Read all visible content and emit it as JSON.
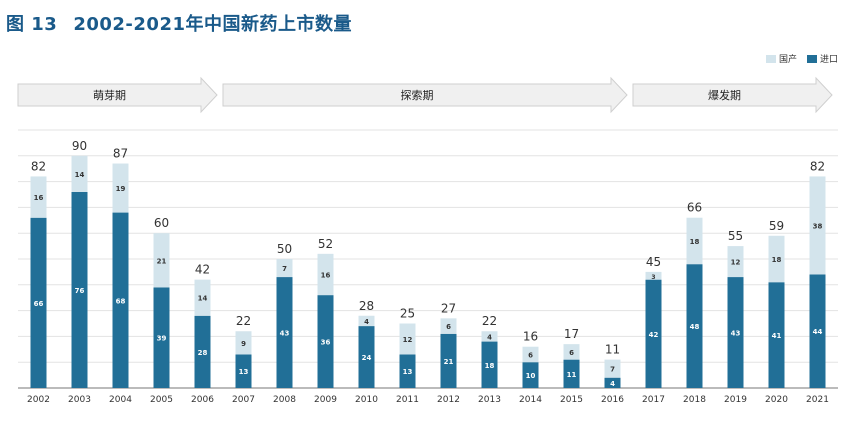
{
  "figure": {
    "number": "图 13",
    "title": "2002-2021年中国新药上市数量"
  },
  "legend": {
    "domestic": "国产",
    "imported": "进口"
  },
  "colors": {
    "domestic": "#d3e4ec",
    "imported": "#216f97",
    "title": "#1a5a8a",
    "phase_arrow": "#f0f0f0"
  },
  "phases": [
    {
      "label": "萌芽期",
      "from": "2002",
      "to": "2006"
    },
    {
      "label": "探索期",
      "from": "2007",
      "to": "2016"
    },
    {
      "label": "爆发期",
      "from": "2017",
      "to": "2021"
    }
  ],
  "chart_data": {
    "type": "bar",
    "stacked": true,
    "categories": [
      "2002",
      "2003",
      "2004",
      "2005",
      "2006",
      "2007",
      "2008",
      "2009",
      "2010",
      "2011",
      "2012",
      "2013",
      "2014",
      "2015",
      "2016",
      "2017",
      "2018",
      "2019",
      "2020",
      "2021"
    ],
    "series": [
      {
        "name": "进口",
        "values": [
          66,
          76,
          68,
          39,
          28,
          13,
          43,
          36,
          24,
          13,
          21,
          18,
          10,
          11,
          4,
          42,
          48,
          43,
          41,
          44
        ]
      },
      {
        "name": "国产",
        "values": [
          16,
          14,
          19,
          21,
          14,
          9,
          7,
          16,
          4,
          12,
          6,
          4,
          6,
          6,
          7,
          3,
          18,
          12,
          18,
          38
        ]
      }
    ],
    "totals": [
      82,
      90,
      87,
      60,
      42,
      22,
      50,
      52,
      28,
      25,
      27,
      22,
      16,
      17,
      11,
      45,
      66,
      55,
      59,
      82
    ],
    "ylim": [
      0,
      100
    ],
    "grid": true,
    "legend_position": "top-right"
  }
}
